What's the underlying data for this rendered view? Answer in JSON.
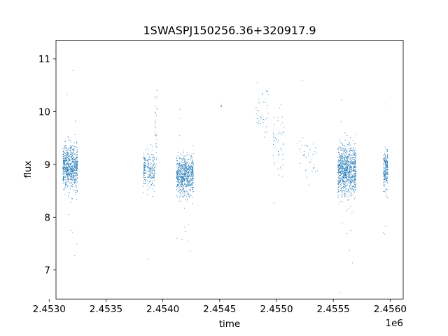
{
  "chart_data": {
    "type": "scatter",
    "title": "1SWASPJ150256.36+320917.9",
    "xlabel": "time",
    "ylabel": "flux",
    "x_offset_label": "1e6",
    "xlim": [
      2.45306,
      2.456115
    ],
    "ylim": [
      6.45,
      11.35
    ],
    "x_ticks": [
      {
        "value": 2.453,
        "label": "2.4530"
      },
      {
        "value": 2.4535,
        "label": "2.4535"
      },
      {
        "value": 2.454,
        "label": "2.4540"
      },
      {
        "value": 2.4545,
        "label": "2.4545"
      },
      {
        "value": 2.455,
        "label": "2.4550"
      },
      {
        "value": 2.4555,
        "label": "2.4555"
      },
      {
        "value": 2.456,
        "label": "2.4560"
      }
    ],
    "y_ticks": [
      {
        "value": 7,
        "label": "7"
      },
      {
        "value": 8,
        "label": "8"
      },
      {
        "value": 9,
        "label": "9"
      },
      {
        "value": 10,
        "label": "10"
      },
      {
        "value": 11,
        "label": "11"
      }
    ],
    "grid": false,
    "legend": "none",
    "marker_color": "#1f77b4",
    "series": [
      {
        "observing_seasons": [
          {
            "x_range": [
              2.45312,
              2.45325
            ],
            "y_center": 8.95,
            "y_spread": 0.5,
            "n_points": 700
          },
          {
            "x_range": [
              2.45383,
              2.45385
            ],
            "y_center": 8.9,
            "y_spread": 0.35,
            "n_points": 80
          },
          {
            "x_range": [
              2.45386,
              2.45393
            ],
            "y_center": 8.9,
            "y_spread": 0.4,
            "n_points": 150
          },
          {
            "x_range": [
              2.45393,
              2.45395
            ],
            "y_center": 9.6,
            "y_spread": 0.9,
            "n_points": 30
          },
          {
            "x_range": [
              2.45412,
              2.45427
            ],
            "y_center": 8.8,
            "y_spread": 0.45,
            "n_points": 700
          },
          {
            "x_range": [
              2.45451,
              2.45452
            ],
            "y_center": 10.1,
            "y_spread": 0.15,
            "n_points": 5
          },
          {
            "x_range": [
              2.45482,
              2.45493
            ],
            "y_center": 10.0,
            "y_spread": 0.45,
            "n_points": 40
          },
          {
            "x_range": [
              2.45497,
              2.45507
            ],
            "y_center": 9.5,
            "y_spread": 0.7,
            "n_points": 50
          },
          {
            "x_range": [
              2.45518,
              2.45537
            ],
            "y_center": 9.2,
            "y_spread": 0.55,
            "n_points": 40
          },
          {
            "x_range": [
              2.45554,
              2.4557
            ],
            "y_center": 8.9,
            "y_spread": 0.55,
            "n_points": 900
          },
          {
            "x_range": [
              2.45594,
              2.45598
            ],
            "y_center": 8.9,
            "y_spread": 0.45,
            "n_points": 200
          }
        ]
      }
    ]
  }
}
